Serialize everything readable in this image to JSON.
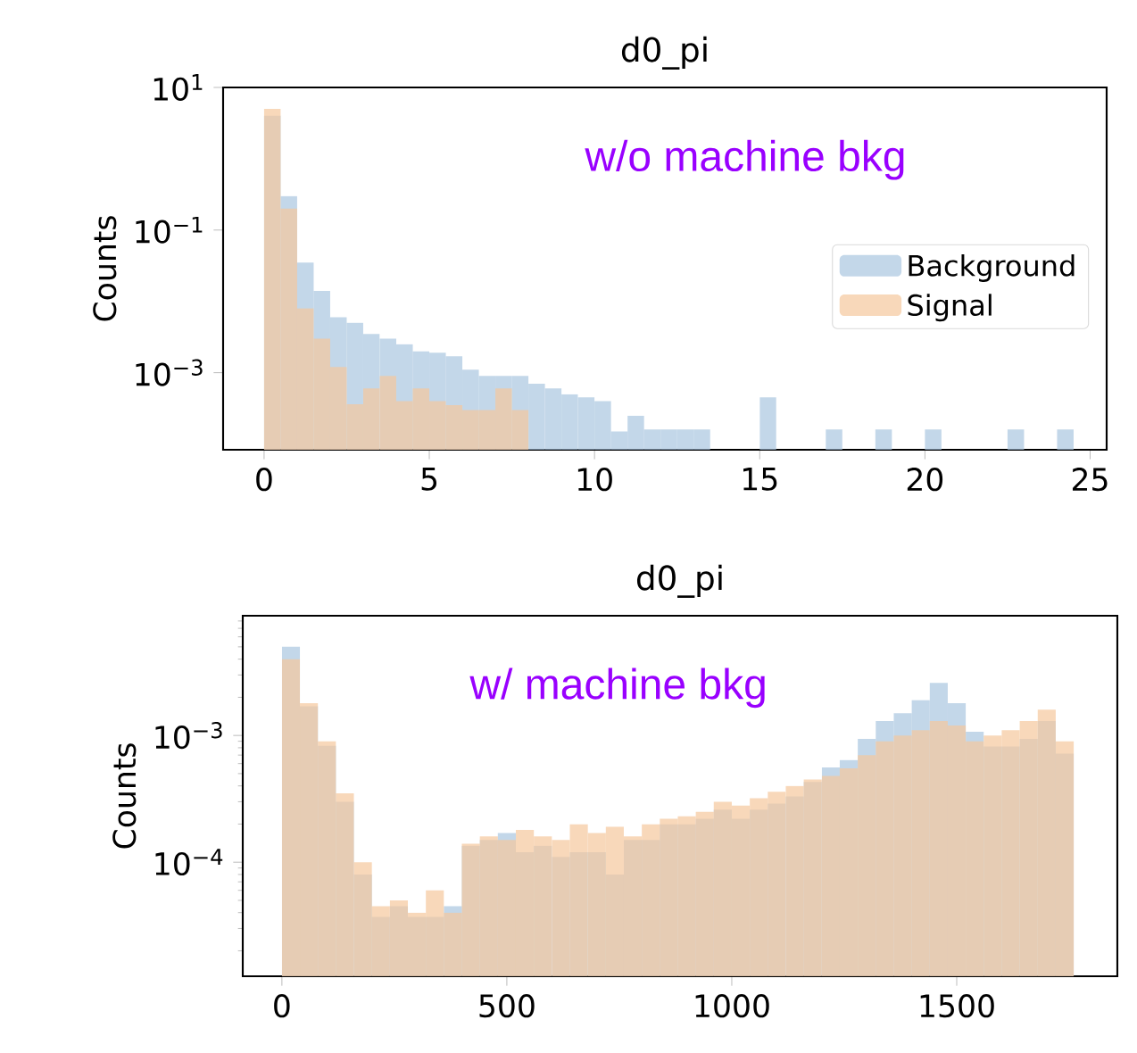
{
  "chart_data": [
    {
      "type": "histogram",
      "title": "d0_pi",
      "ylabel": "Counts",
      "annotations": [
        "w/o machine bkg"
      ],
      "log": "y",
      "legend": "center right",
      "xlim": [
        -1.24,
        25.5
      ],
      "ylim": [
        8.3e-05,
        10
      ],
      "xticks": [
        0,
        5,
        10,
        15,
        20,
        25
      ],
      "yticks": [
        {
          "value": 0.001,
          "label": "10$^{−3}$"
        },
        {
          "value": 0.1,
          "label": "10$^{−1}$"
        },
        {
          "value": 10,
          "label": "10$^{1}$"
        }
      ],
      "bins": [
        0,
        0.5,
        1,
        1.5,
        2,
        2.5,
        3,
        3.5,
        4,
        4.5,
        5,
        5.5,
        6,
        6.5,
        7,
        7.5,
        8,
        8.5,
        9,
        9.5,
        10,
        10.5,
        11,
        11.5,
        12,
        12.5,
        13,
        13.5,
        14,
        14.5,
        15,
        15.5,
        16,
        16.5,
        17,
        17.5,
        18,
        18.5,
        19,
        19.5,
        20,
        20.5,
        21,
        21.5,
        22,
        22.5,
        23,
        23.5,
        24,
        24.5
      ],
      "series": [
        {
          "name": "Background",
          "color": "#aac6e0",
          "values": [
            4,
            0.3,
            0.035,
            0.014,
            0.006,
            0.005,
            0.0035,
            0.003,
            0.0025,
            0.002,
            0.0019,
            0.0017,
            0.0011,
            0.0009,
            0.0009,
            0.0009,
            0.0007,
            0.0006,
            0.0005,
            0.00045,
            0.0004,
            0.00015,
            0.00025,
            0.00016,
            0.00016,
            0.00016,
            0.00016,
            null,
            null,
            null,
            0.00045,
            null,
            null,
            null,
            0.00016,
            null,
            null,
            0.00016,
            null,
            null,
            0.00016,
            null,
            null,
            null,
            null,
            0.00016,
            null,
            null,
            0.00016
          ]
        },
        {
          "name": "Signal",
          "color": "#f5c89c",
          "values": [
            5,
            0.2,
            0.008,
            0.003,
            0.0012,
            0.00036,
            0.0006,
            0.0009,
            0.0004,
            0.0006,
            0.0004,
            0.00035,
            0.0003,
            0.0003,
            0.0006,
            0.0003,
            null,
            null,
            null,
            null,
            null,
            null,
            null,
            null,
            null,
            null,
            null,
            null,
            null,
            null,
            null,
            null,
            null,
            null,
            null,
            null,
            null,
            null,
            null,
            null,
            null,
            null,
            null,
            null,
            null,
            null,
            null,
            null,
            null
          ]
        }
      ]
    },
    {
      "type": "histogram",
      "title": "d0_pi",
      "ylabel": "Counts",
      "annotations": [
        "w/ machine bkg"
      ],
      "log": "y",
      "xlim": [
        -87,
        1857
      ],
      "ylim": [
        1.26e-05,
        0.0088
      ],
      "xticks": [
        0,
        500,
        1000,
        1500
      ],
      "yticks": [
        {
          "value": 2e-05,
          "label": null
        },
        {
          "value": 3e-05,
          "label": null
        },
        {
          "value": 4e-05,
          "label": null
        },
        {
          "value": 5e-05,
          "label": null
        },
        {
          "value": 6e-05,
          "label": null
        },
        {
          "value": 7e-05,
          "label": null
        },
        {
          "value": 8e-05,
          "label": null
        },
        {
          "value": 9e-05,
          "label": null
        },
        {
          "value": 0.0001,
          "label": "10$^{−4}$"
        },
        {
          "value": 0.0002,
          "label": null
        },
        {
          "value": 0.0003,
          "label": null
        },
        {
          "value": 0.0004,
          "label": null
        },
        {
          "value": 0.0005,
          "label": null
        },
        {
          "value": 0.0006,
          "label": null
        },
        {
          "value": 0.0007,
          "label": null
        },
        {
          "value": 0.0008,
          "label": null
        },
        {
          "value": 0.0009,
          "label": null
        },
        {
          "value": 0.001,
          "label": "10$^{−3}$"
        },
        {
          "value": 0.002,
          "label": null
        },
        {
          "value": 0.003,
          "label": null
        },
        {
          "value": 0.004,
          "label": null
        },
        {
          "value": 0.005,
          "label": null
        },
        {
          "value": 0.006,
          "label": null
        },
        {
          "value": 0.007,
          "label": null
        },
        {
          "value": 0.008,
          "label": null
        }
      ],
      "bins": [
        0,
        40,
        80,
        120,
        160,
        200,
        240,
        280,
        320,
        360,
        400,
        440,
        480,
        520,
        560,
        600,
        640,
        680,
        720,
        760,
        800,
        840,
        880,
        920,
        960,
        1000,
        1040,
        1080,
        1120,
        1160,
        1200,
        1240,
        1280,
        1320,
        1360,
        1400,
        1440,
        1480,
        1520,
        1560,
        1600,
        1640,
        1680,
        1720,
        1760
      ],
      "series": [
        {
          "color": "#aac6e0",
          "values": [
            0.005,
            0.0017,
            0.00083,
            0.0003,
            8e-05,
            3.7e-05,
            4.5e-05,
            3.7e-05,
            3.7e-05,
            4.5e-05,
            0.000135,
            0.00015,
            0.00017,
            0.00012,
            0.000135,
            0.00011,
            0.00012,
            0.00012,
            8e-05,
            0.00015,
            0.00015,
            0.0002,
            0.0002,
            0.00022,
            0.00026,
            0.00022,
            0.00026,
            0.00029,
            0.00033,
            0.00043,
            0.00056,
            0.00064,
            0.00094,
            0.0013,
            0.0015,
            0.0019,
            0.0026,
            0.0018,
            0.00107,
            0.00082,
            0.00082,
            0.00094,
            0.0013,
            0.00072
          ]
        },
        {
          "color": "#f5c89c",
          "values": [
            0.004,
            0.0018,
            0.0009,
            0.00035,
            0.0001,
            4.5e-05,
            5e-05,
            4e-05,
            6e-05,
            4e-05,
            0.00014,
            0.00016,
            0.00015,
            0.00018,
            0.00016,
            0.00015,
            0.0002,
            0.00017,
            0.00019,
            0.00016,
            0.0002,
            0.00022,
            0.00023,
            0.00025,
            0.0003,
            0.00028,
            0.00032,
            0.00036,
            0.0004,
            0.00045,
            0.00048,
            0.00055,
            0.0007,
            0.0009,
            0.001,
            0.0011,
            0.0013,
            0.0012,
            0.0009,
            0.001,
            0.0011,
            0.0013,
            0.0016,
            0.0009
          ]
        }
      ]
    }
  ]
}
